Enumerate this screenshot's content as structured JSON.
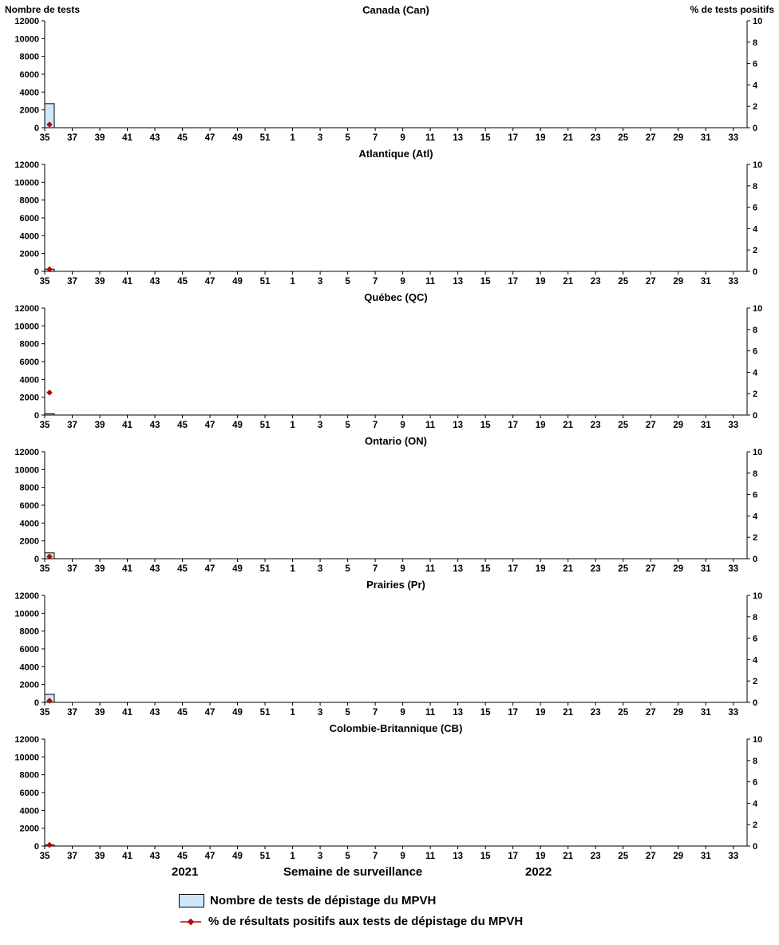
{
  "footer": {
    "year_left": "2021",
    "x_axis_title": "Semaine de surveillance",
    "year_right": "2022"
  },
  "legend": {
    "items": [
      {
        "type": "bar",
        "label": "Nombre de tests de dépistage du MPVH",
        "fill": "#cfe7f6",
        "border": "#000000"
      },
      {
        "type": "point",
        "label": "% de résultats positifs aux tests de dépistage du MPVH",
        "color": "#c00000"
      }
    ]
  },
  "chart_data": {
    "type": "bar",
    "layout": "6 stacked small-multiple panels, shared x axis of surveillance weeks (week 35 of 2021 through week 34 of 2022), bars on left axis, red diamond points on right axis",
    "num_week_slots": 52,
    "x_tick_labels": [
      "35",
      "37",
      "39",
      "41",
      "43",
      "45",
      "47",
      "49",
      "51",
      "1",
      "3",
      "5",
      "7",
      "9",
      "11",
      "13",
      "15",
      "17",
      "19",
      "21",
      "23",
      "25",
      "27",
      "29",
      "31",
      "33"
    ],
    "left_axis": {
      "title": "Nombre de tests",
      "min": 0,
      "max": 12000,
      "step": 2000
    },
    "right_axis": {
      "title": "% de tests positifs",
      "min": 0,
      "max": 10,
      "step": 2
    },
    "series_info": [
      {
        "name": "Nombre de tests de dépistage du MPVH",
        "type": "bar",
        "axis": "left"
      },
      {
        "name": "% de résultats positifs aux tests de dépistage du MPVH",
        "type": "scatter",
        "axis": "right"
      }
    ],
    "panels": [
      {
        "title": "Canada (Can)",
        "week": 35,
        "tests": 2700,
        "pct_positive": 0.3
      },
      {
        "title": "Atlantique (Atl)",
        "week": 35,
        "tests": 250,
        "pct_positive": 0.2
      },
      {
        "title": "Québec (QC)",
        "week": 35,
        "tests": 150,
        "pct_positive": 2.1
      },
      {
        "title": "Ontario (ON)",
        "week": 35,
        "tests": 650,
        "pct_positive": 0.2
      },
      {
        "title": "Prairies (Pr)",
        "week": 35,
        "tests": 900,
        "pct_positive": 0.15
      },
      {
        "title": "Colombie-Britannique (CB)",
        "week": 35,
        "tests": 120,
        "pct_positive": 0.1
      }
    ]
  }
}
